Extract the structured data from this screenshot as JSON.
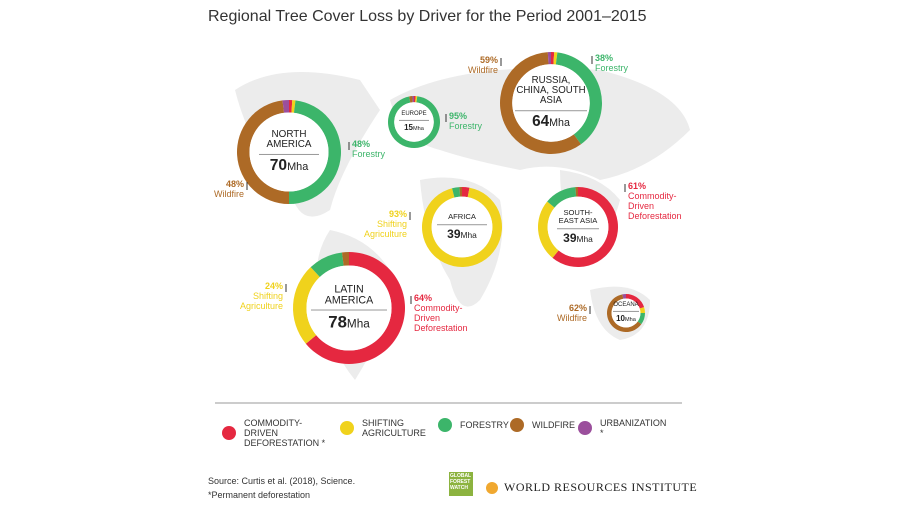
{
  "title": "Regional Tree Cover Loss by Driver for the Period 2001–2015",
  "legend": {
    "names": [
      "COMMODITY-DRIVEN DEFORESTATION *",
      "SHIFTING AGRICULTURE",
      "FORESTRY",
      "WILDFIRE",
      "URBANIZATION *"
    ],
    "colors": [
      "#e52840",
      "#f0d21c",
      "#3cb56a",
      "#ad6a26",
      "#9b4f9c"
    ]
  },
  "chart_data": [
    {
      "type": "pie",
      "title": "NORTH AMERICA",
      "total": 70,
      "unit": "Mha",
      "values": [
        1,
        1,
        48,
        48,
        2
      ],
      "value_labels": [
        null,
        null,
        "48%",
        "48%",
        null
      ],
      "callouts": [
        null,
        null,
        "Forestry",
        "Wildfire",
        null
      ]
    },
    {
      "type": "pie",
      "title": "EUROPE",
      "total": 15,
      "unit": "Mha",
      "values": [
        1,
        1,
        95,
        2,
        1
      ],
      "value_labels": [
        null,
        null,
        "95%",
        null,
        null
      ],
      "callouts": [
        null,
        null,
        "Forestry",
        null,
        null
      ]
    },
    {
      "type": "pie",
      "title": "RUSSIA, CHINA, SOUTH ASIA",
      "total": 64,
      "unit": "Mha",
      "values": [
        1,
        1,
        38,
        59,
        1
      ],
      "value_labels": [
        null,
        null,
        "38%",
        "59%",
        null
      ],
      "callouts": [
        null,
        null,
        "Forestry",
        "Wildfire",
        null
      ]
    },
    {
      "type": "pie",
      "title": "AFRICA",
      "total": 39,
      "unit": "Mha",
      "values": [
        3,
        93,
        3,
        1,
        0
      ],
      "value_labels": [
        null,
        "93%",
        null,
        null,
        null
      ],
      "callouts": [
        null,
        "Shifting Agriculture",
        null,
        null,
        null
      ]
    },
    {
      "type": "pie",
      "title": "SOUTH-EAST ASIA",
      "total": 39,
      "unit": "Mha",
      "values": [
        61,
        25,
        13,
        1,
        0
      ],
      "value_labels": [
        "61%",
        null,
        null,
        null,
        null
      ],
      "callouts": [
        "Commodity-Driven Deforestation",
        null,
        null,
        null,
        null
      ]
    },
    {
      "type": "pie",
      "title": "LATIN AMERICA",
      "total": 78,
      "unit": "Mha",
      "values": [
        64,
        24,
        10,
        2,
        0
      ],
      "value_labels": [
        "64%",
        "24%",
        null,
        null,
        null
      ],
      "callouts": [
        "Commodity-Driven Deforestation",
        "Shifting Agriculture",
        null,
        null,
        null
      ]
    },
    {
      "type": "pie",
      "title": "OCEANA",
      "total": 10,
      "unit": "Mha",
      "values": [
        20,
        5,
        10,
        62,
        3
      ],
      "value_labels": [
        null,
        null,
        null,
        "62%",
        null
      ],
      "callouts": [
        null,
        null,
        null,
        "Wildfire",
        null
      ]
    }
  ],
  "footer": {
    "source": "Source: Curtis et al. (2018), Science.",
    "note": "*Permanent deforestation",
    "gfw": "GLOBAL FOREST WATCH",
    "wri": "WORLD RESOURCES INSTITUTE"
  }
}
